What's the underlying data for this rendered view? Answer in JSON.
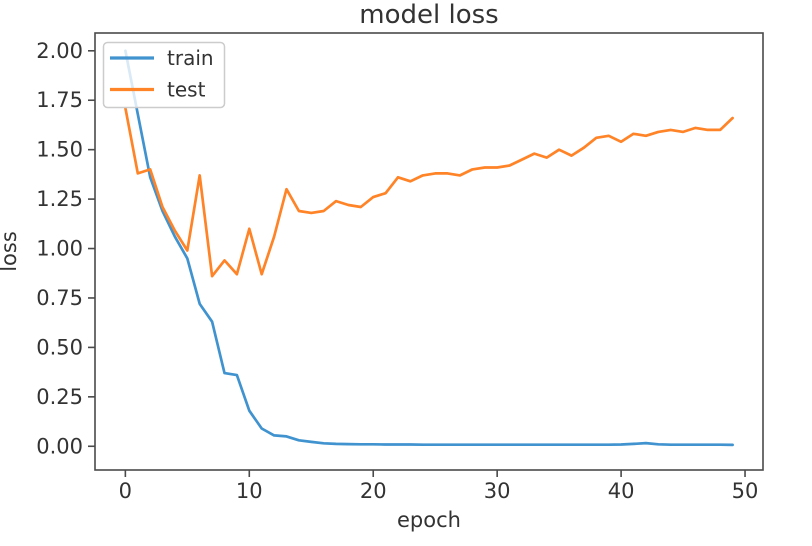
{
  "chart_data": {
    "type": "line",
    "title": "model loss",
    "xlabel": "epoch",
    "ylabel": "loss",
    "x": [
      0,
      1,
      2,
      3,
      4,
      5,
      6,
      7,
      8,
      9,
      10,
      11,
      12,
      13,
      14,
      15,
      16,
      17,
      18,
      19,
      20,
      21,
      22,
      23,
      24,
      25,
      26,
      27,
      28,
      29,
      30,
      31,
      32,
      33,
      34,
      35,
      36,
      37,
      38,
      39,
      40,
      41,
      42,
      43,
      44,
      45,
      46,
      47,
      48,
      49
    ],
    "series": [
      {
        "name": "train",
        "color": "#4093cf",
        "values": [
          2.0,
          1.68,
          1.36,
          1.19,
          1.06,
          0.95,
          0.72,
          0.63,
          0.37,
          0.36,
          0.18,
          0.09,
          0.055,
          0.05,
          0.03,
          0.022,
          0.015,
          0.012,
          0.011,
          0.01,
          0.01,
          0.009,
          0.009,
          0.009,
          0.008,
          0.008,
          0.008,
          0.008,
          0.008,
          0.008,
          0.008,
          0.008,
          0.008,
          0.008,
          0.008,
          0.008,
          0.008,
          0.008,
          0.008,
          0.008,
          0.009,
          0.012,
          0.016,
          0.01,
          0.008,
          0.008,
          0.008,
          0.008,
          0.008,
          0.007
        ]
      },
      {
        "name": "test",
        "color": "#ff8327",
        "values": [
          1.71,
          1.38,
          1.4,
          1.21,
          1.09,
          0.99,
          1.37,
          0.86,
          0.94,
          0.87,
          1.1,
          0.87,
          1.06,
          1.3,
          1.19,
          1.18,
          1.19,
          1.24,
          1.22,
          1.21,
          1.26,
          1.28,
          1.36,
          1.34,
          1.37,
          1.38,
          1.38,
          1.37,
          1.4,
          1.41,
          1.41,
          1.42,
          1.45,
          1.48,
          1.46,
          1.5,
          1.47,
          1.51,
          1.56,
          1.57,
          1.54,
          1.58,
          1.57,
          1.59,
          1.6,
          1.59,
          1.61,
          1.6,
          1.6,
          1.66
        ]
      }
    ],
    "xlim": [
      -2.45,
      51.45
    ],
    "ylim": [
      -0.12,
      2.09
    ],
    "xticks": {
      "values": [
        0,
        10,
        20,
        30,
        40,
        50
      ],
      "labels": [
        "0",
        "10",
        "20",
        "30",
        "40",
        "50"
      ]
    },
    "yticks": {
      "values": [
        0.0,
        0.25,
        0.5,
        0.75,
        1.0,
        1.25,
        1.5,
        1.75,
        2.0
      ],
      "labels": [
        "0.00",
        "0.25",
        "0.50",
        "0.75",
        "1.00",
        "1.25",
        "1.50",
        "1.75",
        "2.00"
      ]
    },
    "grid": false,
    "legend": {
      "position": "upper left",
      "entries": [
        "train",
        "test"
      ]
    },
    "style": {
      "background": "#ffffff",
      "spine_color": "#4a4a4a",
      "text_color": "#333333",
      "legend_border_color": "#cccccc"
    }
  }
}
